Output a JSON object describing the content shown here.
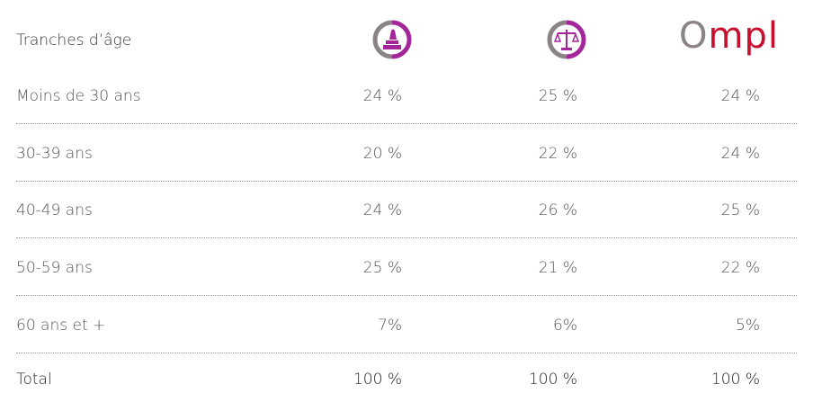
{
  "table": {
    "header": {
      "label": "Tranches d’âge",
      "logo3": "Ompl"
    },
    "rows": [
      [
        "Moins de 30 ans",
        "24 %",
        "25 %",
        "24 %"
      ],
      [
        "30-39 ans",
        "20 %",
        "22 %",
        "24 %"
      ],
      [
        "40-49 ans",
        "24 %",
        "26 %",
        "25 %"
      ],
      [
        "50-59 ans",
        "25 %",
        "21 %",
        "22 %"
      ],
      [
        "60 ans et +",
        "7%",
        "6%",
        "5%"
      ]
    ],
    "total": [
      "Total",
      "100 %",
      "100 %",
      "100 %"
    ]
  }
}
